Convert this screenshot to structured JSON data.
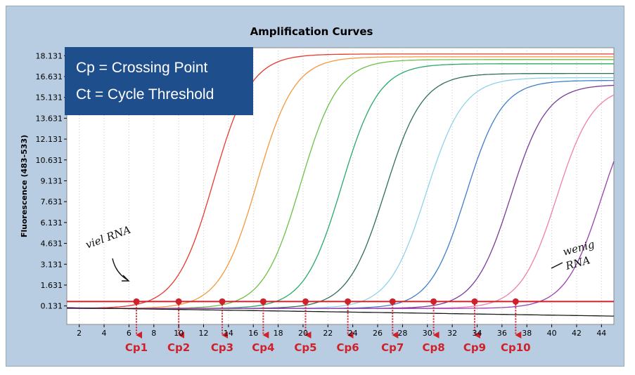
{
  "chart_data": {
    "type": "line",
    "title": "Amplification Curves",
    "ylabel": "Fluorescence (483-533)",
    "xlabel": "",
    "xlim": [
      1,
      45
    ],
    "ylim": [
      -1.2,
      18.7
    ],
    "x_ticks": [
      2,
      4,
      6,
      8,
      10,
      12,
      14,
      16,
      18,
      20,
      22,
      24,
      26,
      28,
      30,
      32,
      34,
      36,
      38,
      40,
      42,
      44
    ],
    "y_ticks": [
      0.131,
      1.631,
      3.131,
      4.631,
      6.131,
      7.631,
      9.131,
      10.631,
      12.131,
      13.631,
      15.131,
      16.631,
      18.131
    ],
    "y_tick_labels": [
      "0.131",
      "1.631",
      "3.131",
      "4.631",
      "6.131",
      "7.631",
      "9.131",
      "10.631",
      "12.131",
      "13.631",
      "15.131",
      "16.631",
      "18.131"
    ],
    "threshold": 0.45,
    "threshold_color": "#d0202a",
    "grid": "vertical-dotted",
    "series": [
      {
        "color": "#e8392e",
        "midpoint": 12.8,
        "slope": 1.5,
        "plateau": 18.3
      },
      {
        "color": "#f39a3c",
        "midpoint": 16.3,
        "slope": 1.5,
        "plateau": 18.1
      },
      {
        "color": "#6cc04a",
        "midpoint": 19.8,
        "slope": 1.5,
        "plateau": 17.9
      },
      {
        "color": "#27a96b",
        "midpoint": 23.1,
        "slope": 1.5,
        "plateau": 17.6
      },
      {
        "color": "#2f6f5a",
        "midpoint": 26.6,
        "slope": 1.5,
        "plateau": 16.9
      },
      {
        "color": "#8fd3ea",
        "midpoint": 29.9,
        "slope": 1.5,
        "plateau": 16.6
      },
      {
        "color": "#3f7fc8",
        "midpoint": 33.1,
        "slope": 1.45,
        "plateau": 16.4
      },
      {
        "color": "#7a3a9a",
        "midpoint": 36.7,
        "slope": 1.45,
        "plateau": 16.1
      },
      {
        "color": "#f07fb0",
        "midpoint": 40.4,
        "slope": 1.45,
        "plateau": 16.0
      },
      {
        "color": "#9a3fb0",
        "midpoint": 44.0,
        "slope": 1.45,
        "plateau": 15.9
      },
      {
        "color": "#1a1a1a",
        "type": "baseline",
        "from": 0.0,
        "to": -0.6
      }
    ],
    "crossing_points": [
      {
        "label": "Cp1",
        "x": 6.6
      },
      {
        "label": "Cp2",
        "x": 10.0
      },
      {
        "label": "Cp3",
        "x": 13.5
      },
      {
        "label": "Cp4",
        "x": 16.8
      },
      {
        "label": "Cp5",
        "x": 20.2
      },
      {
        "label": "Cp6",
        "x": 23.6
      },
      {
        "label": "Cp7",
        "x": 27.2
      },
      {
        "label": "Cp8",
        "x": 30.5
      },
      {
        "label": "Cp9",
        "x": 33.8
      },
      {
        "label": "Cp10",
        "x": 37.1
      }
    ]
  },
  "info_box": {
    "line1": "Cp = Crossing Point",
    "line2": "Ct = Cycle Threshold",
    "background": "#1f4e8c"
  },
  "annotations": {
    "left": "viel RNA",
    "right_line1": "wenig",
    "right_line2": "RNA"
  }
}
